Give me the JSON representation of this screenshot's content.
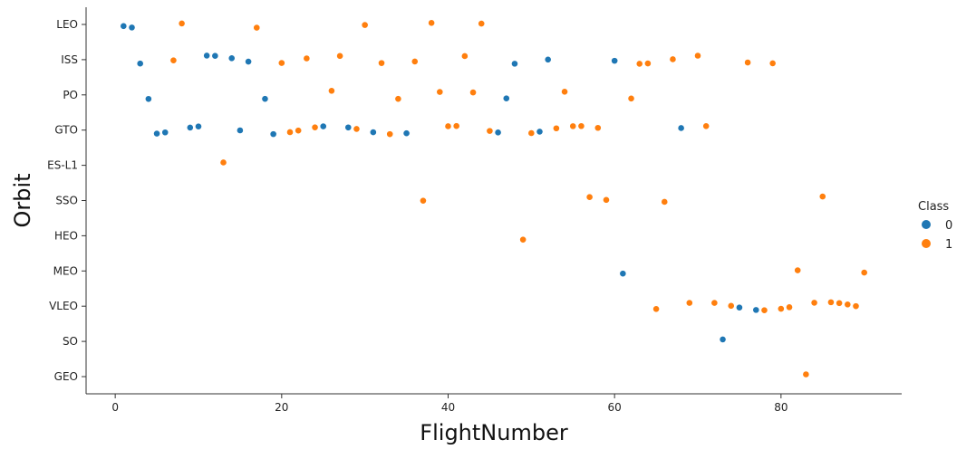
{
  "chart_data": {
    "type": "scatter",
    "xlabel": "FlightNumber",
    "ylabel": "Orbit",
    "xlim": [
      -3.5,
      94.5
    ],
    "x_ticks": [
      0,
      20,
      40,
      60,
      80
    ],
    "x_tick_labels": [
      "0",
      "20",
      "40",
      "60",
      "80"
    ],
    "categories": [
      "LEO",
      "ISS",
      "PO",
      "GTO",
      "ES-L1",
      "SSO",
      "HEO",
      "MEO",
      "VLEO",
      "SO",
      "GEO"
    ],
    "legend": {
      "title": "Class",
      "placement": "right",
      "entries": [
        {
          "label": "0",
          "color": "#1f77b4"
        },
        {
          "label": "1",
          "color": "#ff7f0e"
        }
      ]
    },
    "grid": false,
    "points": [
      {
        "x": 1,
        "orbit": "LEO",
        "class": 0
      },
      {
        "x": 2,
        "orbit": "LEO",
        "class": 0
      },
      {
        "x": 3,
        "orbit": "ISS",
        "class": 0
      },
      {
        "x": 4,
        "orbit": "PO",
        "class": 0
      },
      {
        "x": 5,
        "orbit": "GTO",
        "class": 0
      },
      {
        "x": 6,
        "orbit": "GTO",
        "class": 0
      },
      {
        "x": 7,
        "orbit": "ISS",
        "class": 1
      },
      {
        "x": 8,
        "orbit": "LEO",
        "class": 1
      },
      {
        "x": 9,
        "orbit": "GTO",
        "class": 0
      },
      {
        "x": 10,
        "orbit": "GTO",
        "class": 0
      },
      {
        "x": 11,
        "orbit": "ISS",
        "class": 0
      },
      {
        "x": 12,
        "orbit": "ISS",
        "class": 0
      },
      {
        "x": 13,
        "orbit": "ES-L1",
        "class": 1
      },
      {
        "x": 14,
        "orbit": "ISS",
        "class": 0
      },
      {
        "x": 15,
        "orbit": "GTO",
        "class": 0
      },
      {
        "x": 16,
        "orbit": "ISS",
        "class": 0
      },
      {
        "x": 17,
        "orbit": "LEO",
        "class": 1
      },
      {
        "x": 18,
        "orbit": "PO",
        "class": 0
      },
      {
        "x": 19,
        "orbit": "GTO",
        "class": 0
      },
      {
        "x": 20,
        "orbit": "ISS",
        "class": 1
      },
      {
        "x": 21,
        "orbit": "GTO",
        "class": 1
      },
      {
        "x": 22,
        "orbit": "GTO",
        "class": 1
      },
      {
        "x": 23,
        "orbit": "ISS",
        "class": 1
      },
      {
        "x": 24,
        "orbit": "GTO",
        "class": 1
      },
      {
        "x": 25,
        "orbit": "GTO",
        "class": 0
      },
      {
        "x": 26,
        "orbit": "PO",
        "class": 1
      },
      {
        "x": 27,
        "orbit": "ISS",
        "class": 1
      },
      {
        "x": 28,
        "orbit": "GTO",
        "class": 0
      },
      {
        "x": 29,
        "orbit": "GTO",
        "class": 1
      },
      {
        "x": 30,
        "orbit": "LEO",
        "class": 1
      },
      {
        "x": 31,
        "orbit": "GTO",
        "class": 0
      },
      {
        "x": 32,
        "orbit": "ISS",
        "class": 1
      },
      {
        "x": 33,
        "orbit": "GTO",
        "class": 1
      },
      {
        "x": 34,
        "orbit": "PO",
        "class": 1
      },
      {
        "x": 35,
        "orbit": "GTO",
        "class": 0
      },
      {
        "x": 36,
        "orbit": "ISS",
        "class": 1
      },
      {
        "x": 37,
        "orbit": "SSO",
        "class": 1
      },
      {
        "x": 38,
        "orbit": "LEO",
        "class": 1
      },
      {
        "x": 39,
        "orbit": "PO",
        "class": 1
      },
      {
        "x": 40,
        "orbit": "GTO",
        "class": 1
      },
      {
        "x": 41,
        "orbit": "GTO",
        "class": 1
      },
      {
        "x": 42,
        "orbit": "ISS",
        "class": 1
      },
      {
        "x": 43,
        "orbit": "PO",
        "class": 1
      },
      {
        "x": 44,
        "orbit": "LEO",
        "class": 1
      },
      {
        "x": 45,
        "orbit": "GTO",
        "class": 1
      },
      {
        "x": 46,
        "orbit": "GTO",
        "class": 0
      },
      {
        "x": 47,
        "orbit": "PO",
        "class": 0
      },
      {
        "x": 48,
        "orbit": "ISS",
        "class": 0
      },
      {
        "x": 49,
        "orbit": "HEO",
        "class": 1
      },
      {
        "x": 50,
        "orbit": "GTO",
        "class": 1
      },
      {
        "x": 51,
        "orbit": "GTO",
        "class": 0
      },
      {
        "x": 52,
        "orbit": "ISS",
        "class": 0
      },
      {
        "x": 53,
        "orbit": "GTO",
        "class": 1
      },
      {
        "x": 54,
        "orbit": "PO",
        "class": 1
      },
      {
        "x": 55,
        "orbit": "GTO",
        "class": 1
      },
      {
        "x": 56,
        "orbit": "GTO",
        "class": 1
      },
      {
        "x": 57,
        "orbit": "SSO",
        "class": 1
      },
      {
        "x": 58,
        "orbit": "GTO",
        "class": 1
      },
      {
        "x": 59,
        "orbit": "SSO",
        "class": 1
      },
      {
        "x": 60,
        "orbit": "ISS",
        "class": 0
      },
      {
        "x": 61,
        "orbit": "MEO",
        "class": 0
      },
      {
        "x": 62,
        "orbit": "PO",
        "class": 1
      },
      {
        "x": 63,
        "orbit": "ISS",
        "class": 1
      },
      {
        "x": 64,
        "orbit": "ISS",
        "class": 1
      },
      {
        "x": 65,
        "orbit": "VLEO",
        "class": 1
      },
      {
        "x": 66,
        "orbit": "SSO",
        "class": 1
      },
      {
        "x": 67,
        "orbit": "ISS",
        "class": 1
      },
      {
        "x": 68,
        "orbit": "GTO",
        "class": 0
      },
      {
        "x": 69,
        "orbit": "VLEO",
        "class": 1
      },
      {
        "x": 70,
        "orbit": "ISS",
        "class": 1
      },
      {
        "x": 71,
        "orbit": "GTO",
        "class": 1
      },
      {
        "x": 72,
        "orbit": "VLEO",
        "class": 1
      },
      {
        "x": 73,
        "orbit": "SO",
        "class": 0
      },
      {
        "x": 74,
        "orbit": "VLEO",
        "class": 1
      },
      {
        "x": 75,
        "orbit": "VLEO",
        "class": 0
      },
      {
        "x": 76,
        "orbit": "ISS",
        "class": 1
      },
      {
        "x": 77,
        "orbit": "VLEO",
        "class": 0
      },
      {
        "x": 78,
        "orbit": "VLEO",
        "class": 1
      },
      {
        "x": 79,
        "orbit": "ISS",
        "class": 1
      },
      {
        "x": 80,
        "orbit": "VLEO",
        "class": 1
      },
      {
        "x": 81,
        "orbit": "VLEO",
        "class": 1
      },
      {
        "x": 82,
        "orbit": "MEO",
        "class": 1
      },
      {
        "x": 83,
        "orbit": "GEO",
        "class": 1
      },
      {
        "x": 84,
        "orbit": "VLEO",
        "class": 1
      },
      {
        "x": 85,
        "orbit": "SSO",
        "class": 1
      },
      {
        "x": 86,
        "orbit": "VLEO",
        "class": 1
      },
      {
        "x": 87,
        "orbit": "VLEO",
        "class": 1
      },
      {
        "x": 88,
        "orbit": "VLEO",
        "class": 1
      },
      {
        "x": 89,
        "orbit": "VLEO",
        "class": 1
      },
      {
        "x": 90,
        "orbit": "MEO",
        "class": 1
      }
    ]
  }
}
